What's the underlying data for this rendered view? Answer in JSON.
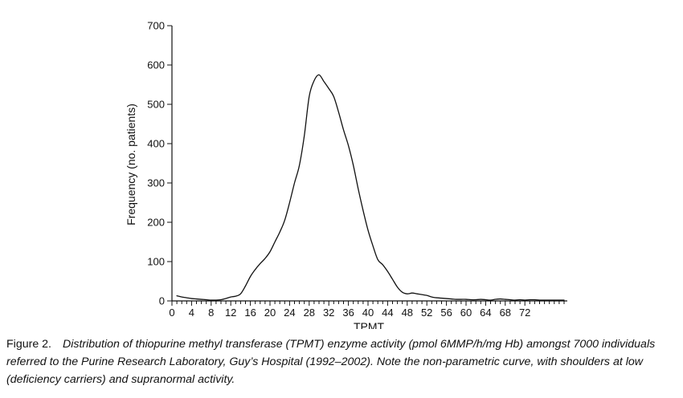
{
  "chart_data": {
    "type": "line",
    "xlabel": "TPMT",
    "ylabel": "Frequency (no. patients)",
    "xlim": [
      0,
      80
    ],
    "ylim": [
      0,
      700
    ],
    "x_tick_values": [
      0,
      4,
      8,
      12,
      16,
      20,
      24,
      28,
      32,
      36,
      40,
      44,
      48,
      52,
      56,
      60,
      64,
      68,
      72
    ],
    "x_tick_labels": [
      "0",
      "4",
      "8",
      "12",
      "16",
      "20",
      "24",
      "28",
      "32",
      "36",
      "40",
      "44",
      "48",
      "52",
      "56",
      "60",
      "64",
      "68",
      "72"
    ],
    "y_tick_values": [
      0,
      100,
      200,
      300,
      400,
      500,
      600,
      700
    ],
    "y_tick_labels": [
      "0",
      "100",
      "200",
      "300",
      "400",
      "500",
      "600",
      "700"
    ],
    "grid": false,
    "legend": "none",
    "series": [
      {
        "color": "#111111",
        "x": [
          1,
          2,
          3,
          4,
          5,
          6,
          7,
          8,
          9,
          10,
          11,
          12,
          13,
          14,
          15,
          16,
          17,
          18,
          19,
          20,
          21,
          22,
          23,
          24,
          25,
          26,
          27,
          28,
          29,
          30,
          31,
          32,
          33,
          34,
          35,
          36,
          37,
          38,
          39,
          40,
          41,
          42,
          43,
          44,
          45,
          46,
          47,
          48,
          49,
          50,
          51,
          52,
          53,
          54,
          55,
          56,
          57,
          58,
          59,
          60,
          61,
          62,
          63,
          64,
          65,
          66,
          67,
          68,
          69,
          70,
          71,
          72,
          73,
          74,
          75,
          76,
          77,
          78,
          79,
          80
        ],
        "y": [
          13,
          10,
          8,
          6,
          5,
          4,
          3,
          2,
          2,
          3,
          6,
          10,
          12,
          18,
          38,
          62,
          80,
          95,
          108,
          125,
          150,
          175,
          205,
          250,
          300,
          345,
          420,
          520,
          560,
          575,
          558,
          540,
          520,
          480,
          435,
          395,
          345,
          285,
          230,
          180,
          140,
          105,
          92,
          75,
          55,
          35,
          22,
          18,
          20,
          18,
          16,
          14,
          10,
          8,
          7,
          6,
          5,
          4,
          4,
          4,
          3,
          3,
          4,
          3,
          2,
          4,
          5,
          4,
          3,
          2,
          3,
          2,
          3,
          3,
          2,
          2,
          2,
          2,
          2,
          2
        ]
      }
    ]
  },
  "caption": {
    "label": "Figure 2.",
    "text": "Distribution of thiopurine methyl transferase (TPMT) enzyme activity (pmol 6MMP/h/mg Hb) amongst 7000 individuals referred to the Purine Research Laboratory, Guy’s Hospital (1992–2002). Note the non-parametric curve, with shoulders at low (deficiency carriers) and supranormal activity."
  }
}
